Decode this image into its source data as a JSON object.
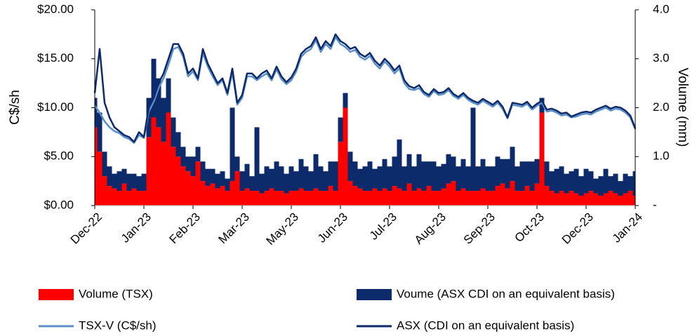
{
  "chart_data": {
    "type": "combo",
    "ylabel": "C$/sh",
    "y2label": "Volume (mm)",
    "categories": [
      "Dec-22",
      null,
      null,
      null,
      null,
      null,
      null,
      null,
      null,
      null,
      "Jan-23",
      null,
      null,
      null,
      null,
      null,
      null,
      null,
      null,
      null,
      "Feb-23",
      null,
      null,
      null,
      null,
      null,
      null,
      null,
      null,
      null,
      "Mar-23",
      null,
      null,
      null,
      null,
      null,
      null,
      null,
      null,
      null,
      "May-23",
      null,
      null,
      null,
      null,
      null,
      null,
      null,
      null,
      null,
      "Jun-23",
      null,
      null,
      null,
      null,
      null,
      null,
      null,
      null,
      null,
      "Jul-23",
      null,
      null,
      null,
      null,
      null,
      null,
      null,
      null,
      null,
      "Aug-23",
      null,
      null,
      null,
      null,
      null,
      null,
      null,
      null,
      null,
      "Sep-23",
      null,
      null,
      null,
      null,
      null,
      null,
      null,
      null,
      null,
      "Oct-23",
      null,
      null,
      null,
      null,
      null,
      null,
      null,
      null,
      null,
      "Dec-23",
      null,
      null,
      null,
      null,
      null,
      null,
      null,
      null,
      null,
      "Jan-24"
    ],
    "ylim": [
      0,
      20
    ],
    "yticks": [
      {
        "value": 0,
        "label": "$0.00"
      },
      {
        "value": 5,
        "label": "$5.00"
      },
      {
        "value": 10,
        "label": "$10.00"
      },
      {
        "value": 15,
        "label": "$15.00"
      },
      {
        "value": 20,
        "label": "$20.00"
      }
    ],
    "y2lim": [
      0,
      4
    ],
    "y2ticks": [
      {
        "value": 0,
        "label": "-"
      },
      {
        "value": 1,
        "label": "1.0"
      },
      {
        "value": 2,
        "label": "2.0"
      },
      {
        "value": 3,
        "label": "3.0"
      },
      {
        "value": 4,
        "label": "4.0"
      }
    ],
    "series": [
      {
        "name": "Volume (TSX)",
        "type": "bar",
        "axis": "y2",
        "color": "#ff0000",
        "values": [
          1.6,
          1.1,
          0.6,
          0.4,
          0.35,
          0.3,
          0.45,
          0.3,
          0.35,
          0.3,
          0.3,
          1.4,
          1.8,
          1.6,
          1.3,
          1.9,
          1.2,
          1.0,
          0.8,
          0.7,
          0.6,
          0.9,
          0.5,
          0.4,
          0.45,
          0.35,
          0.4,
          0.3,
          0.5,
          0.7,
          0.3,
          0.35,
          0.3,
          0.3,
          0.25,
          0.3,
          0.35,
          0.3,
          0.3,
          0.25,
          0.3,
          0.3,
          0.35,
          0.3,
          0.3,
          0.35,
          0.3,
          0.3,
          0.4,
          0.3,
          1.3,
          2.0,
          0.5,
          0.4,
          0.35,
          0.3,
          0.3,
          0.35,
          0.3,
          0.35,
          0.3,
          0.4,
          0.35,
          0.3,
          0.45,
          0.3,
          0.35,
          0.3,
          0.4,
          0.3,
          0.3,
          0.35,
          0.45,
          0.5,
          0.3,
          0.35,
          0.3,
          0.3,
          0.3,
          0.35,
          0.3,
          0.3,
          0.4,
          0.45,
          0.35,
          0.5,
          0.3,
          0.3,
          0.4,
          0.3,
          0.45,
          1.9,
          0.4,
          0.3,
          0.25,
          0.3,
          0.25,
          0.3,
          0.25,
          0.2,
          0.25,
          0.3,
          0.25,
          0.2,
          0.25,
          0.3,
          0.25,
          0.2,
          0.25,
          0.3,
          0.2
        ]
      },
      {
        "name": "Voume (ASX CDI on an equivalent basis)",
        "type": "bar",
        "axis": "y2",
        "color": "#0d2a6b",
        "values": [
          0.6,
          0.8,
          0.5,
          0.4,
          0.3,
          0.4,
          0.3,
          0.35,
          0.3,
          0.3,
          0.35,
          0.8,
          1.2,
          1.0,
          0.9,
          0.7,
          0.6,
          0.5,
          0.4,
          0.3,
          0.4,
          0.3,
          0.4,
          0.35,
          0.3,
          0.3,
          0.3,
          0.25,
          1.5,
          0.3,
          0.4,
          0.5,
          0.3,
          1.3,
          0.4,
          0.5,
          0.4,
          0.6,
          0.5,
          0.4,
          0.5,
          0.4,
          0.6,
          0.5,
          0.4,
          0.7,
          0.5,
          0.4,
          0.5,
          0.6,
          0.5,
          0.3,
          0.6,
          0.5,
          0.4,
          0.5,
          0.6,
          0.4,
          0.5,
          0.6,
          0.5,
          0.6,
          1.0,
          0.5,
          0.6,
          0.5,
          0.7,
          0.6,
          0.5,
          0.6,
          0.5,
          0.5,
          0.6,
          0.5,
          0.5,
          0.6,
          0.5,
          1.7,
          0.5,
          0.6,
          0.5,
          0.5,
          0.6,
          0.5,
          0.6,
          0.7,
          0.5,
          0.6,
          0.5,
          0.6,
          0.5,
          0.3,
          0.5,
          0.4,
          0.5,
          0.5,
          0.4,
          0.4,
          0.5,
          0.4,
          0.5,
          0.4,
          0.3,
          0.4,
          0.5,
          0.3,
          0.4,
          0.3,
          0.4,
          0.3,
          0.5
        ]
      },
      {
        "name": "TSX-V (C$/sh)",
        "type": "line",
        "axis": "y",
        "color": "#5b8fc9",
        "values": [
          10.2,
          9.5,
          8.6,
          8.0,
          7.6,
          7.4,
          7.0,
          6.8,
          6.4,
          7.2,
          6.9,
          9.6,
          10.6,
          12.0,
          13.0,
          14.4,
          16.0,
          16.2,
          15.2,
          13.2,
          13.7,
          12.8,
          15.6,
          14.2,
          13.2,
          12.3,
          12.8,
          11.3,
          13.6,
          10.3,
          11.0,
          13.2,
          13.2,
          12.8,
          13.2,
          13.5,
          12.8,
          13.9,
          12.9,
          12.4,
          12.8,
          13.7,
          15.2,
          15.7,
          16.0,
          16.9,
          15.7,
          16.5,
          16.0,
          17.2,
          16.5,
          16.2,
          15.7,
          15.9,
          15.2,
          14.9,
          15.3,
          14.5,
          14.0,
          14.7,
          14.2,
          13.5,
          14.0,
          12.5,
          11.9,
          11.8,
          12.0,
          11.4,
          11.1,
          11.7,
          11.3,
          11.4,
          11.8,
          11.2,
          10.9,
          11.3,
          10.8,
          10.5,
          10.3,
          10.7,
          10.4,
          10.1,
          10.5,
          9.9,
          8.9,
          10.3,
          10.2,
          10.1,
          10.4,
          9.8,
          10.2,
          10.5,
          9.6,
          9.7,
          9.5,
          9.2,
          9.3,
          9.0,
          9.1,
          9.3,
          9.4,
          9.3,
          9.6,
          9.8,
          10.0,
          9.7,
          9.9,
          9.8,
          9.5,
          9.0,
          7.8
        ]
      },
      {
        "name": "ASX (CDI on an equivalent basis)",
        "type": "line",
        "axis": "y",
        "color": "#0d2a6b",
        "values": [
          11.5,
          16.0,
          10.5,
          9.0,
          8.0,
          7.6,
          7.2,
          7.0,
          6.5,
          7.5,
          7.0,
          10.0,
          11.0,
          12.5,
          13.5,
          15.0,
          16.5,
          16.5,
          15.5,
          13.5,
          14.0,
          13.0,
          16.0,
          14.5,
          13.5,
          12.5,
          13.0,
          11.5,
          14.0,
          10.5,
          11.3,
          13.5,
          13.5,
          13.0,
          13.5,
          13.8,
          13.0,
          14.2,
          13.2,
          12.6,
          13.1,
          14.0,
          15.5,
          16.0,
          16.3,
          17.2,
          16.0,
          16.8,
          16.3,
          17.5,
          16.8,
          16.5,
          16.0,
          16.2,
          15.5,
          15.2,
          15.6,
          14.8,
          14.3,
          15.0,
          14.5,
          13.8,
          14.3,
          12.8,
          12.2,
          12.0,
          12.3,
          11.6,
          11.3,
          11.9,
          11.5,
          11.6,
          12.0,
          11.4,
          11.1,
          11.5,
          11.0,
          10.7,
          10.5,
          10.9,
          10.6,
          10.3,
          10.7,
          10.1,
          9.0,
          10.5,
          10.4,
          10.3,
          10.6,
          10.0,
          10.4,
          10.7,
          9.8,
          9.9,
          9.7,
          9.4,
          9.5,
          9.1,
          9.3,
          9.5,
          9.6,
          9.5,
          9.8,
          10.0,
          10.2,
          9.9,
          10.1,
          10.0,
          9.7,
          9.2,
          7.9
        ]
      }
    ]
  }
}
